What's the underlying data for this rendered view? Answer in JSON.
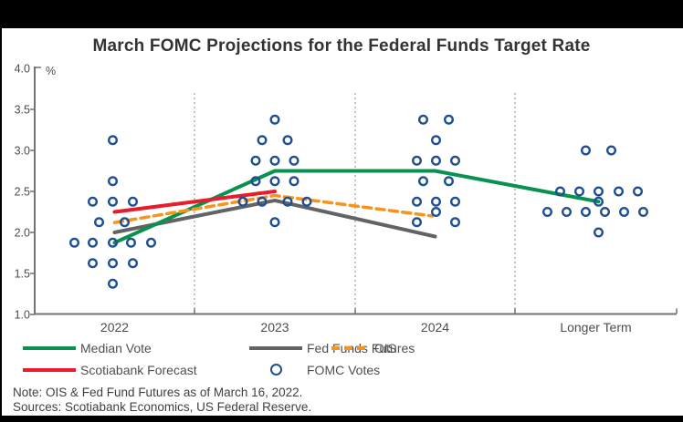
{
  "title": "March FOMC Projections for the Federal Funds Target Rate",
  "notes": {
    "line1": "Note: OIS & Fed Fund Futures as of March 16, 2022.",
    "line2": "Sources: Scotiabank Economics, US Federal Reserve."
  },
  "legend": {
    "items": [
      {
        "label": "Median Vote",
        "swatch": "line",
        "color": "#0A9150"
      },
      {
        "label": "Fed Funds Futures",
        "swatch": "line",
        "color": "#616365"
      },
      {
        "label": "OIS",
        "swatch": "dashed-line",
        "color": "#F7941E"
      },
      {
        "label": "Scotiabank Forecast",
        "swatch": "line",
        "color": "#E91C2D"
      },
      {
        "label": "FOMC Votes",
        "swatch": "circle",
        "color": "#1F4F91"
      }
    ]
  },
  "chart_data": {
    "type": "line+scatter",
    "title": "March FOMC Projections for the Federal Funds Target Rate",
    "unit_label": "%",
    "ylim": [
      1.0,
      4.0
    ],
    "yticks": [
      "4.0",
      "3.5",
      "3.0",
      "2.5",
      "2.0",
      "1.5",
      "1.0"
    ],
    "ytick_values": [
      4.0,
      3.5,
      3.0,
      2.5,
      2.0,
      1.5,
      1.0
    ],
    "categories": [
      "2022",
      "2023",
      "2024",
      "Longer Term"
    ],
    "grid": "vertical-dashed-separators",
    "legend_position": "bottom-left",
    "series": [
      {
        "name": "Fed Funds Futures",
        "kind": "line",
        "color": "#616365",
        "width": 4,
        "z": 1,
        "points": [
          {
            "c": 0,
            "v": 2.0
          },
          {
            "c": 1,
            "v": 2.39
          },
          {
            "c": 2,
            "v": 1.95
          }
        ]
      },
      {
        "name": "Median Vote",
        "kind": "line",
        "color": "#0A9150",
        "width": 4,
        "z": 2,
        "points": [
          {
            "c": 0,
            "v": 1.875
          },
          {
            "c": 1,
            "v": 2.75
          },
          {
            "c": 2,
            "v": 2.75
          },
          {
            "c": 3,
            "v": 2.375,
            "dx": 3
          }
        ]
      },
      {
        "name": "Scotiabank Forecast",
        "kind": "line",
        "color": "#E91C2D",
        "width": 4,
        "z": 3,
        "points": [
          {
            "c": 0,
            "v": 2.25
          },
          {
            "c": 1,
            "v": 2.5
          }
        ]
      },
      {
        "name": "OIS",
        "kind": "dashed-line",
        "color": "#F7941E",
        "width": 3.5,
        "z": 4,
        "points": [
          {
            "c": 0,
            "v": 2.12
          },
          {
            "c": 1,
            "v": 2.45
          },
          {
            "c": 2,
            "v": 2.2,
            "dx": -3
          }
        ]
      },
      {
        "name": "FOMC Votes",
        "kind": "scatter",
        "color": "#1F4F91",
        "z": 5,
        "points_fmt": "[category_index, rate_percent, x_jitter_px]",
        "points": [
          [
            0,
            3.125,
            -2
          ],
          [
            0,
            2.625,
            -2
          ],
          [
            0,
            2.375,
            -24
          ],
          [
            0,
            2.375,
            -2
          ],
          [
            0,
            2.375,
            20
          ],
          [
            0,
            2.125,
            -17
          ],
          [
            0,
            2.125,
            11
          ],
          [
            0,
            1.875,
            -44
          ],
          [
            0,
            1.875,
            -24
          ],
          [
            0,
            1.875,
            -2
          ],
          [
            0,
            1.875,
            18
          ],
          [
            0,
            1.875,
            40
          ],
          [
            0,
            1.625,
            -24
          ],
          [
            0,
            1.625,
            -2
          ],
          [
            0,
            1.625,
            20
          ],
          [
            0,
            1.375,
            -2
          ],
          [
            1,
            3.375,
            0
          ],
          [
            1,
            3.125,
            -14
          ],
          [
            1,
            3.125,
            14
          ],
          [
            1,
            2.875,
            -21
          ],
          [
            1,
            2.875,
            0
          ],
          [
            1,
            2.875,
            21
          ],
          [
            1,
            2.625,
            -21
          ],
          [
            1,
            2.625,
            0
          ],
          [
            1,
            2.625,
            21
          ],
          [
            1,
            2.375,
            -35
          ],
          [
            1,
            2.375,
            -14
          ],
          [
            1,
            2.375,
            14
          ],
          [
            1,
            2.375,
            35
          ],
          [
            1,
            2.125,
            0
          ],
          [
            2,
            3.375,
            -13
          ],
          [
            2,
            3.375,
            15
          ],
          [
            2,
            3.125,
            1
          ],
          [
            2,
            2.875,
            -20
          ],
          [
            2,
            2.875,
            1
          ],
          [
            2,
            2.875,
            22
          ],
          [
            2,
            2.625,
            -13
          ],
          [
            2,
            2.625,
            15
          ],
          [
            2,
            2.375,
            -20
          ],
          [
            2,
            2.375,
            1
          ],
          [
            2,
            2.375,
            22
          ],
          [
            2,
            2.25,
            1
          ],
          [
            2,
            2.125,
            -20
          ],
          [
            2,
            2.125,
            22
          ],
          [
            3,
            3.0,
            -11
          ],
          [
            3,
            3.0,
            17
          ],
          [
            3,
            2.5,
            -39
          ],
          [
            3,
            2.5,
            -18
          ],
          [
            3,
            2.5,
            3
          ],
          [
            3,
            2.5,
            25
          ],
          [
            3,
            2.5,
            46
          ],
          [
            3,
            2.375,
            3
          ],
          [
            3,
            2.25,
            -53
          ],
          [
            3,
            2.25,
            -32
          ],
          [
            3,
            2.25,
            -11
          ],
          [
            3,
            2.25,
            10
          ],
          [
            3,
            2.25,
            31
          ],
          [
            3,
            2.25,
            52
          ],
          [
            3,
            2.0,
            3
          ]
        ]
      }
    ]
  }
}
